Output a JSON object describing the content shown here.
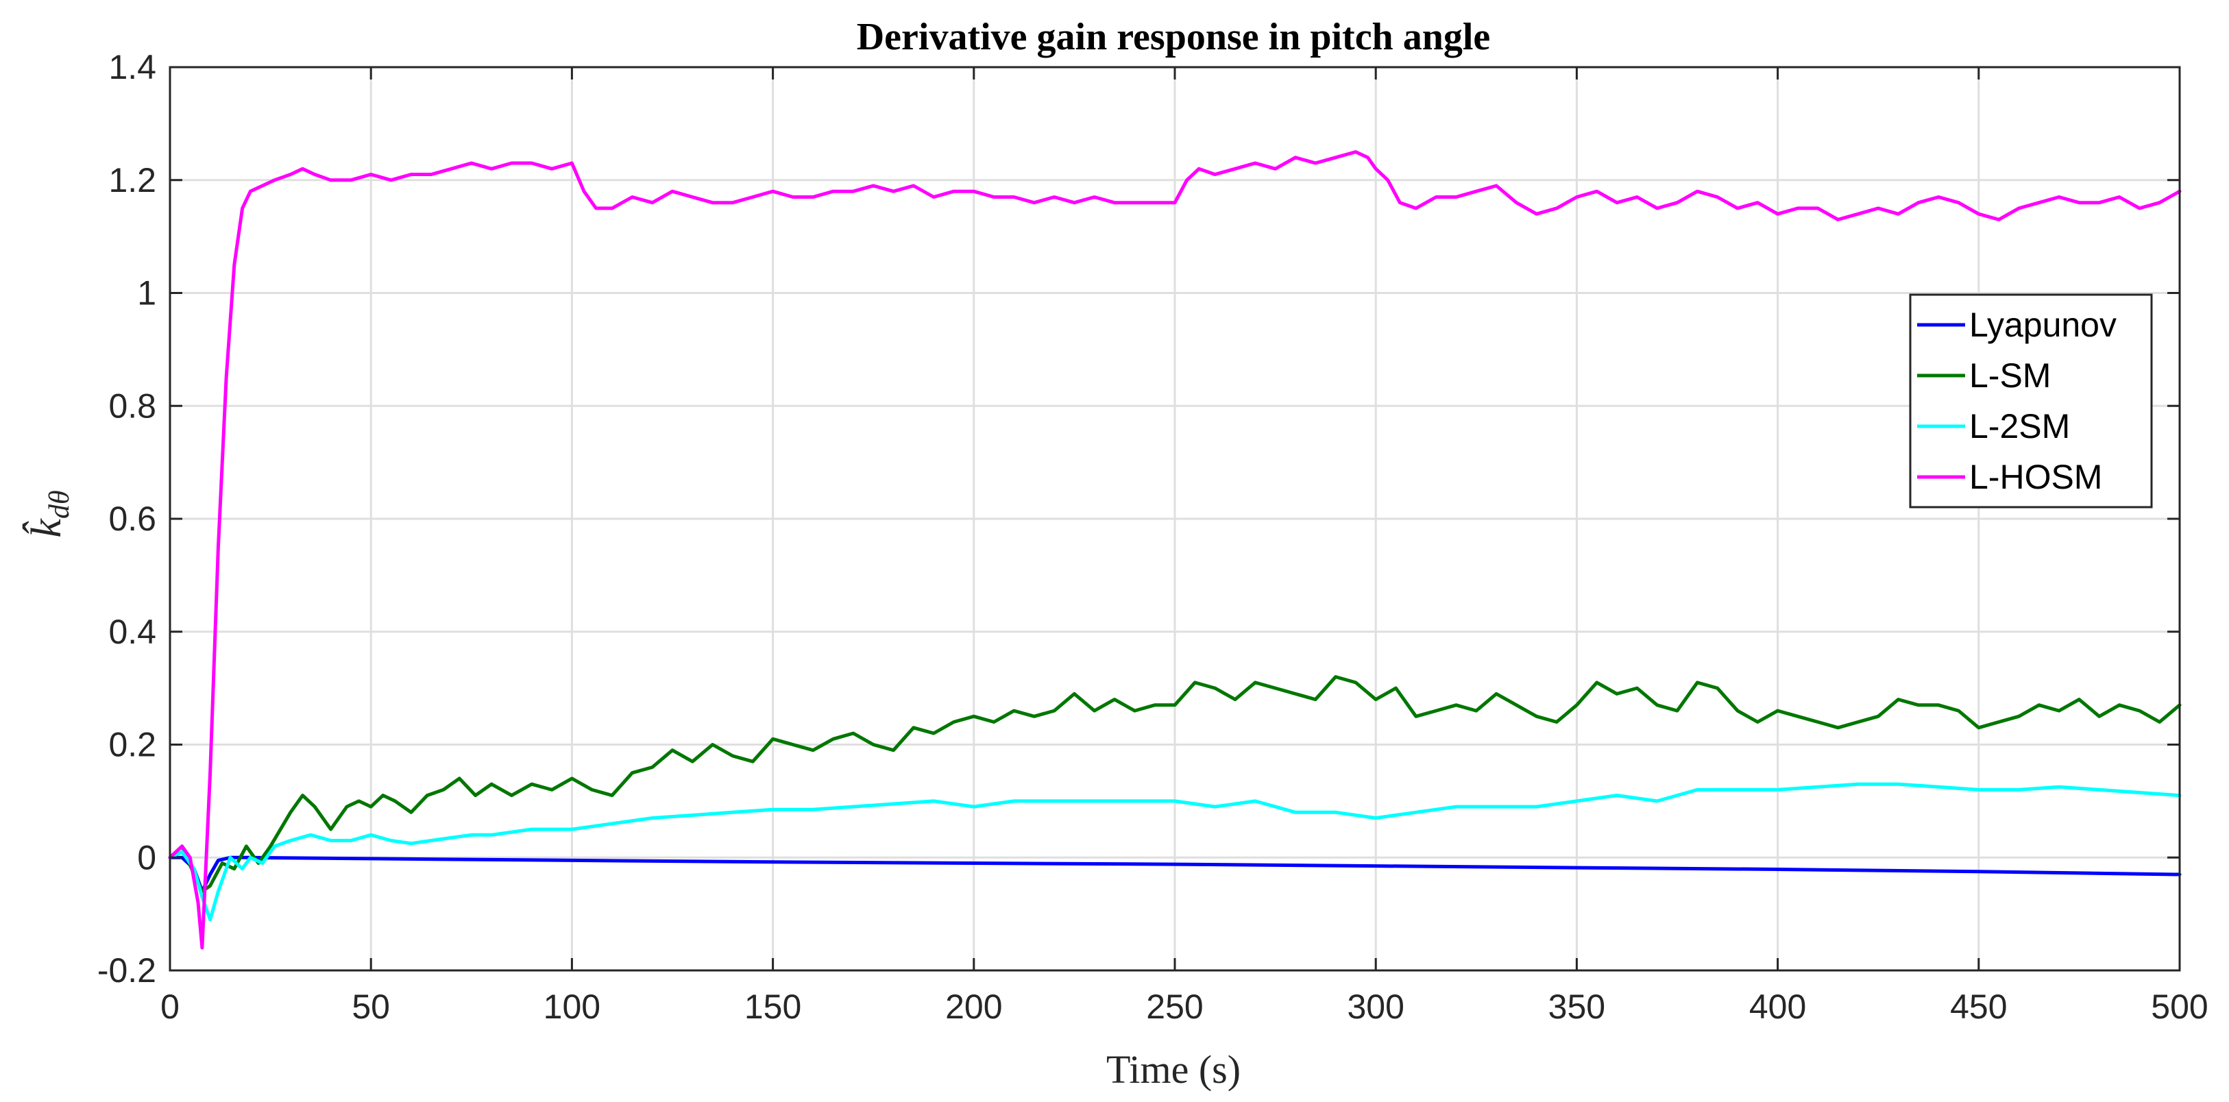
{
  "chart_data": {
    "type": "line",
    "title": "Derivative gain response in pitch angle",
    "xlabel": "Time (s)",
    "ylabel": "k̂_dθ",
    "ylabel_main": "k̂",
    "ylabel_sub": "dθ",
    "xlim": [
      0,
      500
    ],
    "ylim": [
      -0.2,
      1.4
    ],
    "xticks": [
      0,
      50,
      100,
      150,
      200,
      250,
      300,
      350,
      400,
      450,
      500
    ],
    "yticks": [
      -0.2,
      0,
      0.2,
      0.4,
      0.6,
      0.8,
      1,
      1.2,
      1.4
    ],
    "xtick_labels": [
      "0",
      "50",
      "100",
      "150",
      "200",
      "250",
      "300",
      "350",
      "400",
      "450",
      "500"
    ],
    "ytick_labels": [
      "-0.2",
      "0",
      "0.2",
      "0.4",
      "0.6",
      "0.8",
      "1",
      "1.2",
      "1.4"
    ],
    "grid": true,
    "legend_position": "right",
    "series": [
      {
        "name": "Lyapunov",
        "color": "#0000ff",
        "x": [
          0,
          3,
          6,
          8,
          10,
          12,
          15,
          20,
          50,
          100,
          150,
          200,
          250,
          300,
          350,
          400,
          450,
          500
        ],
        "y": [
          0,
          0,
          -0.02,
          -0.06,
          -0.03,
          -0.005,
          0,
          0,
          -0.002,
          -0.005,
          -0.008,
          -0.01,
          -0.012,
          -0.015,
          -0.018,
          -0.021,
          -0.025,
          -0.03
        ]
      },
      {
        "name": "L-SM",
        "color": "#007700",
        "x": [
          0,
          3,
          6,
          8,
          10,
          13,
          16,
          19,
          22,
          25,
          30,
          33,
          36,
          40,
          44,
          47,
          50,
          53,
          56,
          60,
          64,
          68,
          72,
          76,
          80,
          85,
          90,
          95,
          100,
          105,
          110,
          115,
          120,
          125,
          130,
          135,
          140,
          145,
          150,
          155,
          160,
          165,
          170,
          175,
          180,
          185,
          190,
          195,
          200,
          205,
          210,
          215,
          220,
          225,
          230,
          235,
          240,
          245,
          250,
          255,
          260,
          265,
          270,
          275,
          280,
          285,
          290,
          295,
          300,
          305,
          310,
          315,
          320,
          325,
          330,
          335,
          340,
          345,
          350,
          355,
          360,
          365,
          370,
          375,
          380,
          385,
          390,
          395,
          400,
          405,
          410,
          415,
          420,
          425,
          430,
          435,
          440,
          445,
          450,
          455,
          460,
          465,
          470,
          475,
          480,
          485,
          490,
          495,
          500
        ],
        "y": [
          0,
          0.02,
          -0.03,
          -0.06,
          -0.05,
          -0.01,
          -0.02,
          0.02,
          -0.01,
          0.02,
          0.08,
          0.11,
          0.09,
          0.05,
          0.09,
          0.1,
          0.09,
          0.11,
          0.1,
          0.08,
          0.11,
          0.12,
          0.14,
          0.11,
          0.13,
          0.11,
          0.13,
          0.12,
          0.14,
          0.12,
          0.11,
          0.15,
          0.16,
          0.19,
          0.17,
          0.2,
          0.18,
          0.17,
          0.21,
          0.2,
          0.19,
          0.21,
          0.22,
          0.2,
          0.19,
          0.23,
          0.22,
          0.24,
          0.25,
          0.24,
          0.26,
          0.25,
          0.26,
          0.29,
          0.26,
          0.28,
          0.26,
          0.27,
          0.27,
          0.31,
          0.3,
          0.28,
          0.31,
          0.3,
          0.29,
          0.28,
          0.32,
          0.31,
          0.28,
          0.3,
          0.25,
          0.26,
          0.27,
          0.26,
          0.29,
          0.27,
          0.25,
          0.24,
          0.27,
          0.31,
          0.29,
          0.3,
          0.27,
          0.26,
          0.31,
          0.3,
          0.26,
          0.24,
          0.26,
          0.25,
          0.24,
          0.23,
          0.24,
          0.25,
          0.28,
          0.27,
          0.27,
          0.26,
          0.23,
          0.24,
          0.25,
          0.27,
          0.26,
          0.28,
          0.25,
          0.27,
          0.26,
          0.24,
          0.27
        ],
        "y_note": "values visually estimated"
      },
      {
        "name": "L-2SM",
        "color": "#00ffff",
        "x": [
          0,
          3,
          6,
          8,
          10,
          12,
          15,
          18,
          20,
          23,
          26,
          30,
          35,
          40,
          45,
          50,
          55,
          60,
          65,
          70,
          75,
          80,
          85,
          90,
          95,
          100,
          110,
          120,
          130,
          140,
          150,
          160,
          170,
          180,
          190,
          200,
          210,
          220,
          230,
          240,
          250,
          260,
          270,
          280,
          290,
          300,
          310,
          320,
          330,
          340,
          350,
          360,
          370,
          380,
          390,
          400,
          410,
          420,
          430,
          440,
          450,
          460,
          470,
          480,
          490,
          500
        ],
        "y": [
          0,
          0.01,
          -0.02,
          -0.07,
          -0.11,
          -0.06,
          0.0,
          -0.02,
          0.0,
          -0.01,
          0.02,
          0.03,
          0.04,
          0.03,
          0.03,
          0.04,
          0.03,
          0.025,
          0.03,
          0.035,
          0.04,
          0.04,
          0.045,
          0.05,
          0.05,
          0.05,
          0.06,
          0.07,
          0.075,
          0.08,
          0.085,
          0.085,
          0.09,
          0.095,
          0.1,
          0.09,
          0.1,
          0.1,
          0.1,
          0.1,
          0.1,
          0.09,
          0.1,
          0.08,
          0.08,
          0.07,
          0.08,
          0.09,
          0.09,
          0.09,
          0.1,
          0.11,
          0.1,
          0.12,
          0.12,
          0.12,
          0.125,
          0.13,
          0.13,
          0.125,
          0.12,
          0.12,
          0.125,
          0.12,
          0.115,
          0.11
        ]
      },
      {
        "name": "L-HOSM",
        "color": "#ff00ff",
        "x": [
          0,
          3,
          5,
          7,
          8,
          10,
          12,
          14,
          16,
          18,
          20,
          23,
          26,
          30,
          33,
          36,
          40,
          45,
          50,
          55,
          60,
          65,
          70,
          75,
          80,
          85,
          90,
          95,
          100,
          103,
          106,
          110,
          115,
          120,
          125,
          130,
          135,
          140,
          145,
          150,
          155,
          160,
          165,
          170,
          175,
          180,
          185,
          190,
          195,
          200,
          205,
          210,
          215,
          220,
          225,
          230,
          235,
          240,
          245,
          250,
          253,
          256,
          260,
          265,
          270,
          275,
          280,
          285,
          290,
          295,
          298,
          300,
          303,
          306,
          310,
          315,
          320,
          325,
          330,
          335,
          340,
          345,
          350,
          355,
          360,
          365,
          370,
          375,
          380,
          385,
          390,
          395,
          400,
          405,
          410,
          415,
          420,
          425,
          430,
          435,
          440,
          445,
          450,
          455,
          460,
          465,
          470,
          475,
          480,
          485,
          490,
          495,
          500
        ],
        "y": [
          0,
          0.02,
          0.0,
          -0.08,
          -0.16,
          0.15,
          0.55,
          0.85,
          1.05,
          1.15,
          1.18,
          1.19,
          1.2,
          1.21,
          1.22,
          1.21,
          1.2,
          1.2,
          1.21,
          1.2,
          1.21,
          1.21,
          1.22,
          1.23,
          1.22,
          1.23,
          1.23,
          1.22,
          1.23,
          1.18,
          1.15,
          1.15,
          1.17,
          1.16,
          1.18,
          1.17,
          1.16,
          1.16,
          1.17,
          1.18,
          1.17,
          1.17,
          1.18,
          1.18,
          1.19,
          1.18,
          1.19,
          1.17,
          1.18,
          1.18,
          1.17,
          1.17,
          1.16,
          1.17,
          1.16,
          1.17,
          1.16,
          1.16,
          1.16,
          1.16,
          1.2,
          1.22,
          1.21,
          1.22,
          1.23,
          1.22,
          1.24,
          1.23,
          1.24,
          1.25,
          1.24,
          1.22,
          1.2,
          1.16,
          1.15,
          1.17,
          1.17,
          1.18,
          1.19,
          1.16,
          1.14,
          1.15,
          1.17,
          1.18,
          1.16,
          1.17,
          1.15,
          1.16,
          1.18,
          1.17,
          1.15,
          1.16,
          1.14,
          1.15,
          1.15,
          1.13,
          1.14,
          1.15,
          1.14,
          1.16,
          1.17,
          1.16,
          1.14,
          1.13,
          1.15,
          1.16,
          1.17,
          1.16,
          1.16,
          1.17,
          1.15,
          1.16,
          1.18
        ]
      }
    ]
  }
}
